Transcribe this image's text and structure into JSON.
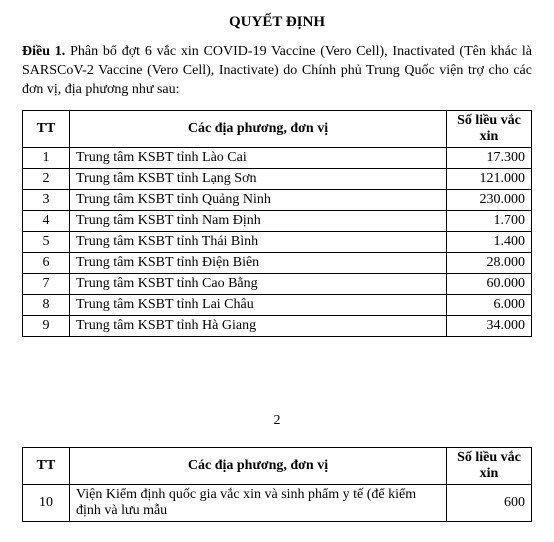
{
  "title": "QUYẾT ĐỊNH",
  "article": {
    "lead": "Điều 1.",
    "text": " Phân bổ đợt 6 vắc xin COVID-19 Vaccine (Vero Cell), Inactivated (Tên khác là SARSCoV-2 Vaccine (Vero Cell), Inactivate) do Chính phủ Trung Quốc viện trợ cho các đơn vị, địa phương như sau:"
  },
  "headers": {
    "tt": "TT",
    "name": "Các địa phương, đơn vị",
    "qty": "Số liều vắc xin"
  },
  "rows_p1": [
    {
      "tt": "1",
      "name": "Trung tâm KSBT tỉnh Lào Cai",
      "qty": "17.300"
    },
    {
      "tt": "2",
      "name": "Trung tâm KSBT tỉnh Lạng Sơn",
      "qty": "121.000"
    },
    {
      "tt": "3",
      "name": "Trung tâm KSBT tỉnh Quảng Ninh",
      "qty": "230.000"
    },
    {
      "tt": "4",
      "name": "Trung tâm KSBT tỉnh Nam Định",
      "qty": "1.700"
    },
    {
      "tt": "5",
      "name": "Trung tâm KSBT tỉnh Thái Bình",
      "qty": "1.400"
    },
    {
      "tt": "6",
      "name": "Trung tâm KSBT tỉnh Điện Biên",
      "qty": "28.000"
    },
    {
      "tt": "7",
      "name": "Trung tâm KSBT tỉnh Cao Bằng",
      "qty": "60.000"
    },
    {
      "tt": "8",
      "name": "Trung tâm KSBT tỉnh Lai Châu",
      "qty": "6.000"
    },
    {
      "tt": "9",
      "name": "Trung tâm KSBT tỉnh Hà Giang",
      "qty": "34.000"
    }
  ],
  "page_number": "2",
  "rows_p2": [
    {
      "tt": "10",
      "name": "Viện Kiểm định quốc gia vắc xin và sinh phẩm y tế (để kiểm định và lưu mẫu",
      "qty": "600"
    }
  ]
}
